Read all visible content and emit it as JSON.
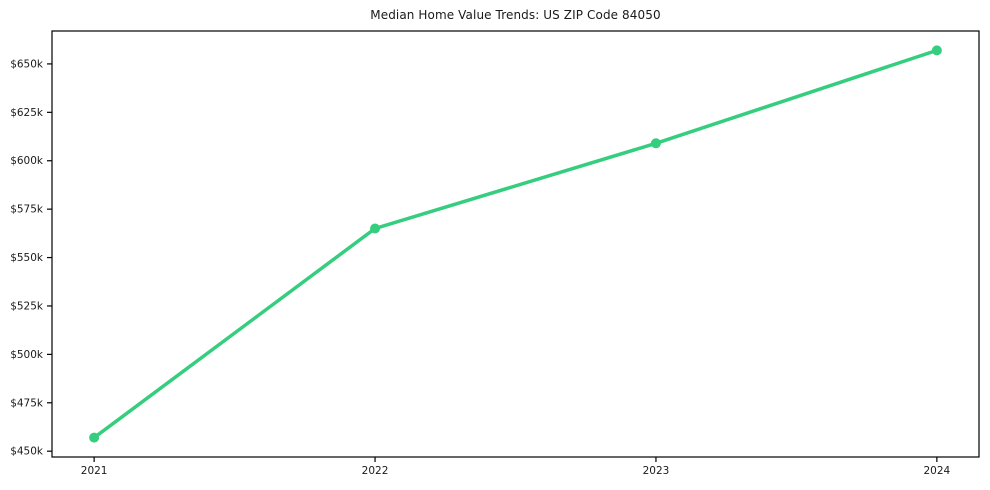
{
  "chart_data": {
    "type": "line",
    "title": "Median Home Value Trends: US ZIP Code 84050",
    "xlabel": "",
    "ylabel": "",
    "x": [
      2021,
      2022,
      2023,
      2024
    ],
    "series": [
      {
        "values": [
          457,
          565,
          609,
          657
        ],
        "unit": "USD thousands",
        "color": "#35cd7e",
        "marker": "circle",
        "line_width": 3.5,
        "marker_radius": 5
      }
    ],
    "xticks": {
      "values": [
        2021,
        2022,
        2023,
        2024
      ],
      "labels": [
        "2021",
        "2022",
        "2023",
        "2024"
      ]
    },
    "yticks": {
      "values": [
        450,
        475,
        500,
        525,
        550,
        575,
        600,
        625,
        650
      ],
      "labels": [
        "$450k",
        "$475k",
        "$500k",
        "$525k",
        "$550k",
        "$575k",
        "$600k",
        "$625k",
        "$650k"
      ]
    },
    "xlim": [
      2020.85,
      2024.15
    ],
    "ylim": [
      447,
      667
    ],
    "grid": false,
    "legend": "none",
    "axis_color": "#000000",
    "background": "#ffffff",
    "text_color": "#1a1a1a"
  }
}
